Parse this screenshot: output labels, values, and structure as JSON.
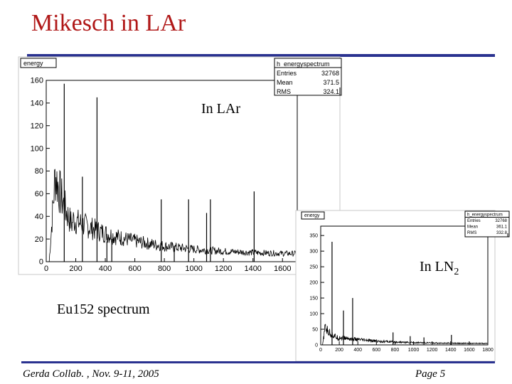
{
  "slide": {
    "title": "Mikesch in LAr",
    "footer_left": "Gerda Collab. , Nov. 9-11, 2005",
    "footer_right": "Page 5",
    "label_lar": "In LAr",
    "label_ln2_main": "In LN",
    "label_ln2_sub": "2",
    "label_spectrum": "Eu152 spectrum"
  },
  "colors": {
    "title": "#b01818",
    "rule": "#2a3290",
    "trace": "#000000"
  },
  "chart_data": [
    {
      "type": "line",
      "title": "energy",
      "stats": {
        "name": "h_energyspectrum",
        "rows": [
          {
            "label": "Entries",
            "value": "32768"
          },
          {
            "label": "Mean",
            "value": "371.5"
          },
          {
            "label": "RMS",
            "value": "324.1"
          }
        ]
      },
      "xlim": [
        0,
        1700
      ],
      "ylim": [
        0,
        160
      ],
      "x_ticks": [
        0,
        200,
        400,
        600,
        800,
        1000,
        1200,
        1400,
        1600
      ],
      "y_ticks": [
        0,
        20,
        40,
        60,
        80,
        100,
        120,
        140,
        160
      ],
      "continuum": {
        "start": 20,
        "end": 1700,
        "rise_to": 75,
        "rise_channel": 60,
        "peak_level": 78,
        "decay_channel": 180,
        "floor": 6
      },
      "peaks": [
        {
          "x": 122,
          "height": 157
        },
        {
          "x": 245,
          "height": 75
        },
        {
          "x": 344,
          "height": 145
        },
        {
          "x": 411,
          "height": 18
        },
        {
          "x": 444,
          "height": 20
        },
        {
          "x": 779,
          "height": 55
        },
        {
          "x": 867,
          "height": 14
        },
        {
          "x": 964,
          "height": 55
        },
        {
          "x": 1086,
          "height": 43
        },
        {
          "x": 1112,
          "height": 55
        },
        {
          "x": 1408,
          "height": 62
        }
      ]
    },
    {
      "type": "line",
      "title": "energy",
      "stats": {
        "name": "h_energyspectrum",
        "rows": [
          {
            "label": "Entries",
            "value": "32768"
          },
          {
            "label": "Mean",
            "value": "361.1"
          },
          {
            "label": "RMS",
            "value": "332.8"
          }
        ]
      },
      "xlim": [
        0,
        1800
      ],
      "ylim": [
        0,
        380
      ],
      "x_ticks": [
        0,
        200,
        400,
        600,
        800,
        1000,
        1200,
        1400,
        1600,
        1800
      ],
      "y_ticks": [
        0,
        50,
        100,
        150,
        200,
        250,
        300,
        350
      ],
      "continuum": {
        "start": 20,
        "end": 1800,
        "rise_to": 70,
        "rise_channel": 55,
        "peak_level": 50,
        "decay_channel": 200,
        "floor": 4
      },
      "peaks": [
        {
          "x": 122,
          "height": 330
        },
        {
          "x": 245,
          "height": 110
        },
        {
          "x": 344,
          "height": 150
        },
        {
          "x": 779,
          "height": 40
        },
        {
          "x": 964,
          "height": 28
        },
        {
          "x": 1112,
          "height": 24
        },
        {
          "x": 1408,
          "height": 32
        }
      ]
    }
  ]
}
